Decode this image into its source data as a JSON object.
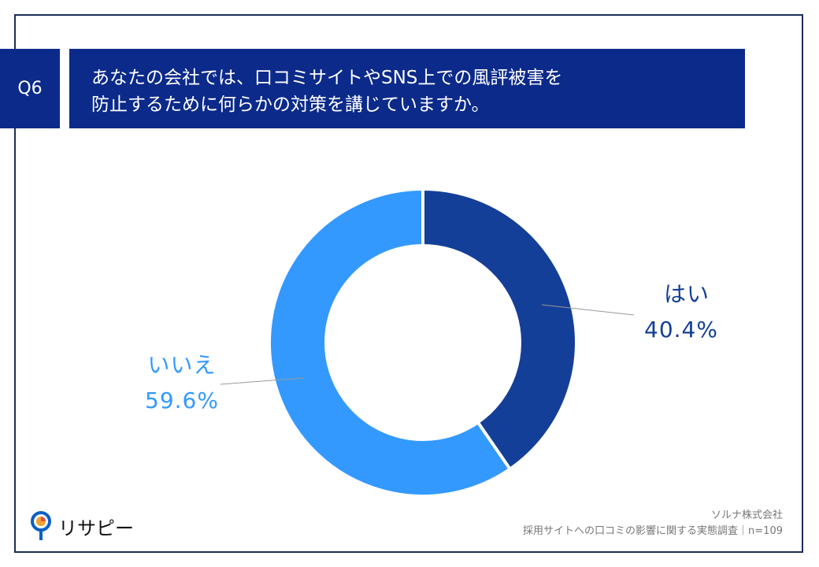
{
  "question": {
    "number": "Q6",
    "text_line1": "あなたの会社では、口コミサイトやSNS上での風評被害を",
    "text_line2": "防止するために何らかの対策を講じていますか。"
  },
  "chart_data": {
    "type": "pie",
    "donut": true,
    "categories": [
      "はい",
      "いいえ"
    ],
    "values": [
      40.4,
      59.6
    ],
    "value_labels": [
      "40.4%",
      "59.6%"
    ],
    "colors": [
      "#143f98",
      "#3399ff"
    ]
  },
  "footer": {
    "company": "ソルナ株式会社",
    "source": "採用サイトへの口コミの影響に関する実態調査｜n=109"
  },
  "logo": {
    "text": "リサピー"
  }
}
